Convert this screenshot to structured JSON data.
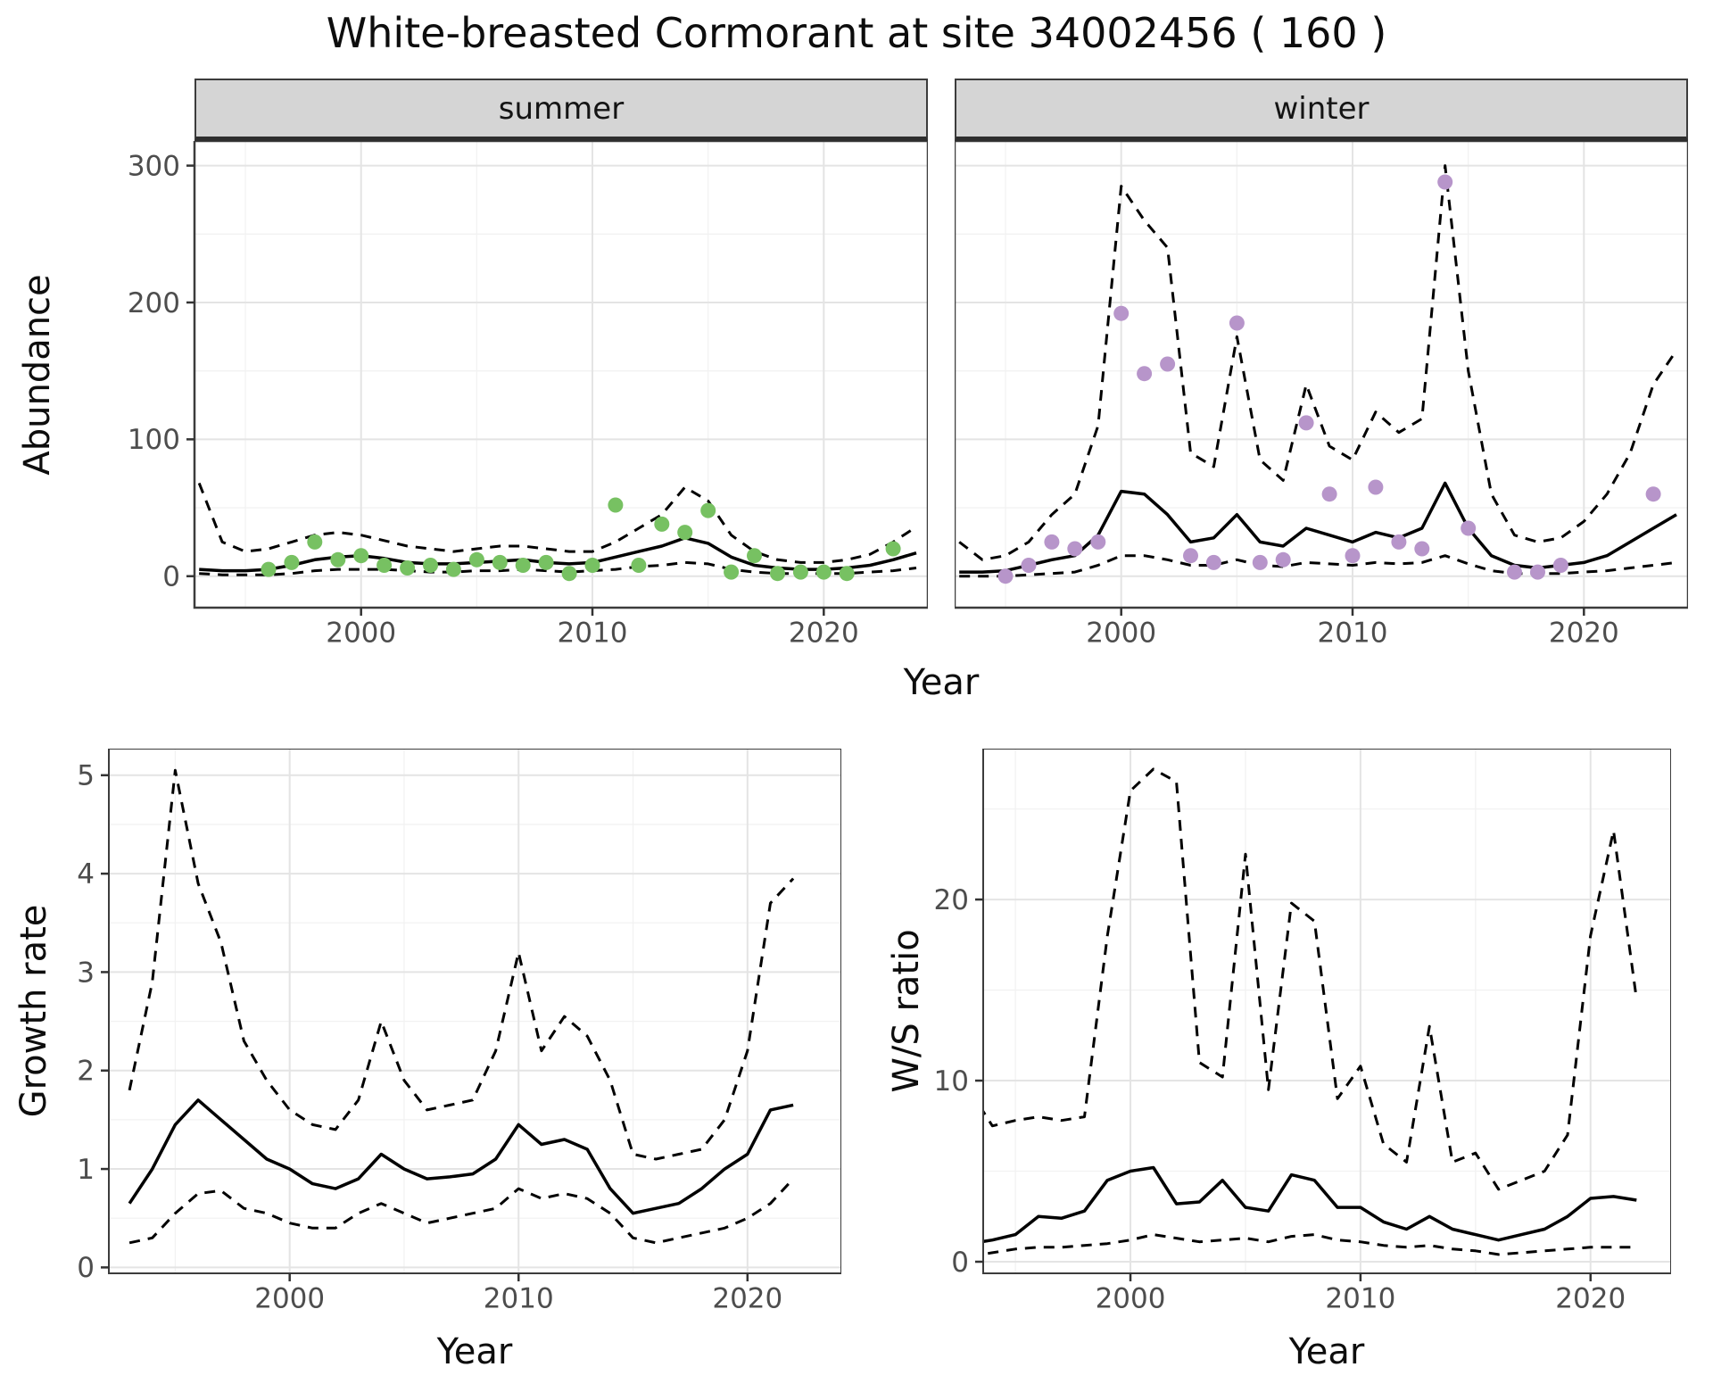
{
  "title": "White-breasted Cormorant at site 34002456 ( 160 )",
  "colors": {
    "summer_points": "#77c162",
    "winter_points": "#b795ca",
    "line": "#000000",
    "grid_major": "#e4e4e4",
    "grid_minor": "#f2f2f2",
    "panel_border": "#3c3c3c",
    "tick_mark": "#333333",
    "tick_text": "#4d4d4d",
    "strip_bg": "#d5d5d5"
  },
  "chart_data": [
    {
      "id": "abundance-summer",
      "type": "scatter+line",
      "facet": "summer",
      "xlabel": "Year",
      "ylabel": "Abundance",
      "xlim": [
        1992.8,
        2024.5
      ],
      "ylim": [
        -23,
        318
      ],
      "xticks": [
        2000,
        2010,
        2020
      ],
      "yticks": [
        0,
        100,
        200,
        300
      ],
      "grid": "on",
      "legend": "none",
      "x": [
        1993,
        1994,
        1995,
        1996,
        1997,
        1998,
        1999,
        2000,
        2001,
        2002,
        2003,
        2004,
        2005,
        2006,
        2007,
        2008,
        2009,
        2010,
        2011,
        2012,
        2013,
        2014,
        2015,
        2016,
        2017,
        2018,
        2019,
        2020,
        2021,
        2022,
        2023,
        2024
      ],
      "series": [
        {
          "name": "mean",
          "style": "solid",
          "values": [
            5,
            4,
            4,
            5,
            8,
            12,
            14,
            15,
            13,
            10,
            9,
            9,
            10,
            11,
            12,
            10,
            9,
            10,
            14,
            18,
            22,
            28,
            24,
            14,
            8,
            6,
            5,
            5,
            6,
            8,
            12,
            17
          ]
        },
        {
          "name": "upper-ci",
          "style": "dashed",
          "values": [
            68,
            25,
            18,
            20,
            25,
            30,
            32,
            30,
            26,
            22,
            20,
            18,
            20,
            22,
            22,
            20,
            18,
            18,
            25,
            35,
            45,
            65,
            55,
            30,
            18,
            12,
            10,
            10,
            12,
            16,
            25,
            36
          ]
        },
        {
          "name": "lower-ci",
          "style": "dashed",
          "values": [
            2,
            1,
            1,
            1,
            2,
            4,
            5,
            5,
            5,
            4,
            3,
            3,
            4,
            4,
            5,
            4,
            3,
            4,
            5,
            7,
            8,
            10,
            9,
            5,
            3,
            2,
            2,
            2,
            2,
            3,
            4,
            6
          ]
        }
      ],
      "points": {
        "name": "observed-counts-summer",
        "color": "#77c162",
        "x": [
          1996,
          1997,
          1998,
          1999,
          2000,
          2001,
          2002,
          2003,
          2004,
          2005,
          2006,
          2007,
          2008,
          2009,
          2010,
          2011,
          2012,
          2013,
          2014,
          2015,
          2016,
          2017,
          2018,
          2019,
          2020,
          2021,
          2023
        ],
        "values": [
          5,
          10,
          25,
          12,
          15,
          8,
          6,
          8,
          5,
          12,
          10,
          8,
          10,
          2,
          8,
          52,
          8,
          38,
          32,
          48,
          3,
          15,
          2,
          3,
          3,
          2,
          20
        ]
      }
    },
    {
      "id": "abundance-winter",
      "type": "scatter+line",
      "facet": "winter",
      "xlabel": "Year",
      "ylabel": "Abundance",
      "xlim": [
        1992.8,
        2024.5
      ],
      "ylim": [
        -23,
        318
      ],
      "xticks": [
        2000,
        2010,
        2020
      ],
      "yticks": [
        0,
        100,
        200,
        300
      ],
      "grid": "on",
      "legend": "none",
      "x": [
        1993,
        1994,
        1995,
        1996,
        1997,
        1998,
        1999,
        2000,
        2001,
        2002,
        2003,
        2004,
        2005,
        2006,
        2007,
        2008,
        2009,
        2010,
        2011,
        2012,
        2013,
        2014,
        2015,
        2016,
        2017,
        2018,
        2019,
        2020,
        2021,
        2022,
        2023,
        2024
      ],
      "series": [
        {
          "name": "mean",
          "style": "solid",
          "values": [
            3,
            3,
            4,
            8,
            12,
            15,
            30,
            62,
            60,
            45,
            25,
            28,
            45,
            25,
            22,
            35,
            30,
            25,
            32,
            28,
            35,
            68,
            35,
            15,
            8,
            6,
            8,
            10,
            15,
            25,
            35,
            45
          ]
        },
        {
          "name": "upper-ci",
          "style": "dashed",
          "values": [
            25,
            12,
            15,
            25,
            45,
            60,
            110,
            285,
            260,
            240,
            90,
            80,
            175,
            85,
            70,
            140,
            95,
            85,
            120,
            105,
            115,
            300,
            150,
            60,
            30,
            25,
            28,
            40,
            60,
            90,
            140,
            165
          ]
        },
        {
          "name": "lower-ci",
          "style": "dashed",
          "values": [
            0,
            0,
            0,
            1,
            2,
            3,
            8,
            15,
            15,
            12,
            8,
            8,
            12,
            8,
            7,
            10,
            9,
            8,
            10,
            9,
            10,
            15,
            9,
            4,
            2,
            2,
            2,
            3,
            4,
            6,
            8,
            10
          ]
        }
      ],
      "points": {
        "name": "observed-counts-winter",
        "color": "#b795ca",
        "x": [
          1995,
          1996,
          1997,
          1998,
          1999,
          2000,
          2001,
          2002,
          2003,
          2004,
          2005,
          2006,
          2007,
          2008,
          2009,
          2010,
          2011,
          2012,
          2013,
          2014,
          2015,
          2017,
          2018,
          2019,
          2023
        ],
        "values": [
          0,
          8,
          25,
          20,
          25,
          192,
          148,
          155,
          15,
          10,
          185,
          10,
          12,
          112,
          60,
          15,
          65,
          25,
          20,
          288,
          35,
          3,
          3,
          8,
          60
        ]
      }
    },
    {
      "id": "growth-rate",
      "type": "line",
      "xlabel": "Year",
      "ylabel": "Growth rate",
      "xlim": [
        1992.1,
        2024.1
      ],
      "ylim": [
        -0.06,
        5.27
      ],
      "xticks": [
        2000,
        2010,
        2020
      ],
      "yticks": [
        0,
        1,
        2,
        3,
        4,
        5
      ],
      "grid": "on",
      "legend": "none",
      "x": [
        1993,
        1994,
        1995,
        1996,
        1997,
        1998,
        1999,
        2000,
        2001,
        2002,
        2003,
        2004,
        2005,
        2006,
        2007,
        2008,
        2009,
        2010,
        2011,
        2012,
        2013,
        2014,
        2015,
        2016,
        2017,
        2018,
        2019,
        2020,
        2021,
        2022
      ],
      "series": [
        {
          "name": "mean",
          "style": "solid",
          "values": [
            0.65,
            1.0,
            1.45,
            1.7,
            1.5,
            1.3,
            1.1,
            1.0,
            0.85,
            0.8,
            0.9,
            1.15,
            1.0,
            0.9,
            0.92,
            0.95,
            1.1,
            1.45,
            1.25,
            1.3,
            1.2,
            0.8,
            0.55,
            0.6,
            0.65,
            0.8,
            1.0,
            1.15,
            1.6,
            1.65
          ]
        },
        {
          "name": "upper-ci",
          "style": "dashed",
          "values": [
            1.8,
            2.9,
            5.05,
            3.9,
            3.3,
            2.3,
            1.9,
            1.6,
            1.45,
            1.4,
            1.7,
            2.5,
            1.9,
            1.6,
            1.65,
            1.7,
            2.2,
            3.2,
            2.2,
            2.55,
            2.35,
            1.9,
            1.15,
            1.1,
            1.15,
            1.2,
            1.5,
            2.2,
            3.7,
            3.95
          ]
        },
        {
          "name": "lower-ci",
          "style": "dashed",
          "values": [
            0.25,
            0.3,
            0.55,
            0.75,
            0.78,
            0.6,
            0.55,
            0.45,
            0.4,
            0.4,
            0.55,
            0.65,
            0.55,
            0.45,
            0.5,
            0.55,
            0.6,
            0.8,
            0.7,
            0.75,
            0.7,
            0.55,
            0.3,
            0.25,
            0.3,
            0.35,
            0.4,
            0.5,
            0.65,
            0.9
          ]
        }
      ]
    },
    {
      "id": "ws-ratio",
      "type": "line",
      "xlabel": "Year",
      "ylabel": "W/S ratio",
      "xlim": [
        1993.6,
        2023.5
      ],
      "ylim": [
        -0.64,
        28.33
      ],
      "xticks": [
        2000,
        2010,
        2020
      ],
      "yticks": [
        0,
        10,
        20
      ],
      "grid": "on",
      "legend": "none",
      "x": [
        1993,
        1994,
        1995,
        1996,
        1997,
        1998,
        1999,
        2000,
        2001,
        2002,
        2003,
        2004,
        2005,
        2006,
        2007,
        2008,
        2009,
        2010,
        2011,
        2012,
        2013,
        2014,
        2015,
        2016,
        2017,
        2018,
        2019,
        2020,
        2021,
        2022
      ],
      "series": [
        {
          "name": "mean",
          "style": "solid",
          "values": [
            1.0,
            1.2,
            1.5,
            2.5,
            2.4,
            2.8,
            4.5,
            5.0,
            5.2,
            3.2,
            3.3,
            4.5,
            3.0,
            2.8,
            4.8,
            4.5,
            3.0,
            3.0,
            2.2,
            1.8,
            2.5,
            1.8,
            1.5,
            1.2,
            1.5,
            1.8,
            2.5,
            3.5,
            3.6,
            3.4
          ]
        },
        {
          "name": "upper-ci",
          "style": "dashed",
          "values": [
            9.5,
            7.5,
            7.8,
            8.0,
            7.8,
            8.0,
            18.0,
            26.0,
            27.2,
            26.5,
            11.0,
            10.2,
            22.5,
            9.5,
            19.8,
            18.8,
            9.0,
            10.8,
            6.5,
            5.5,
            13.0,
            5.5,
            6.0,
            4.0,
            4.5,
            5.0,
            7.0,
            18.0,
            23.8,
            14.5
          ]
        },
        {
          "name": "lower-ci",
          "style": "dashed",
          "values": [
            0.3,
            0.5,
            0.7,
            0.8,
            0.8,
            0.9,
            1.0,
            1.2,
            1.5,
            1.3,
            1.1,
            1.2,
            1.3,
            1.1,
            1.4,
            1.5,
            1.2,
            1.1,
            0.9,
            0.8,
            0.9,
            0.7,
            0.6,
            0.4,
            0.5,
            0.6,
            0.7,
            0.8,
            0.8,
            0.8
          ]
        }
      ]
    }
  ]
}
